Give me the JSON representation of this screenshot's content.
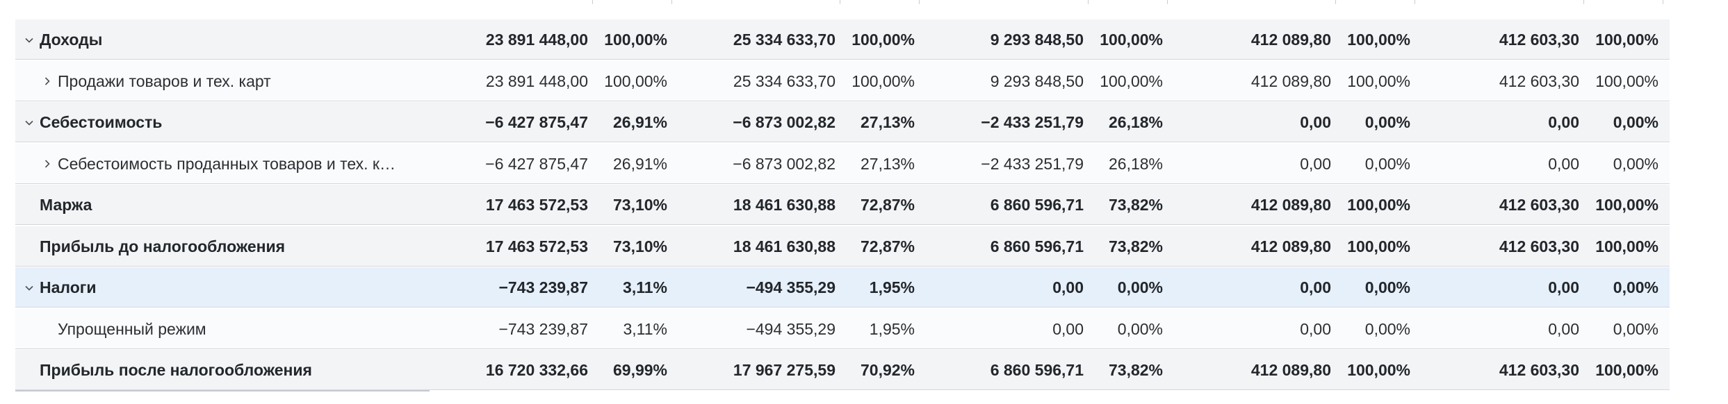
{
  "rows": [
    {
      "label": "Доходы",
      "expand": "down",
      "style": "grey bold",
      "v": [
        "23 891 448,00",
        "100,00%",
        "25 334 633,70",
        "100,00%",
        "9 293 848,50",
        "100,00%",
        "412 089,80",
        "100,00%",
        "412 603,30",
        "100,00%"
      ]
    },
    {
      "label": "Продажи товаров и тех. карт",
      "expand": "right",
      "style": "light",
      "v": [
        "23 891 448,00",
        "100,00%",
        "25 334 633,70",
        "100,00%",
        "9 293 848,50",
        "100,00%",
        "412 089,80",
        "100,00%",
        "412 603,30",
        "100,00%"
      ]
    },
    {
      "label": "Себестоимость",
      "expand": "down",
      "style": "grey bold",
      "v": [
        "−6 427 875,47",
        "26,91%",
        "−6 873 002,82",
        "27,13%",
        "−2 433 251,79",
        "26,18%",
        "0,00",
        "0,00%",
        "0,00",
        "0,00%"
      ]
    },
    {
      "label": "Себестоимость проданных товаров и тех. к…",
      "expand": "right",
      "style": "light",
      "v": [
        "−6 427 875,47",
        "26,91%",
        "−6 873 002,82",
        "27,13%",
        "−2 433 251,79",
        "26,18%",
        "0,00",
        "0,00%",
        "0,00",
        "0,00%"
      ]
    },
    {
      "label": "Маржа",
      "expand": "none",
      "style": "grey bold",
      "v": [
        "17 463 572,53",
        "73,10%",
        "18 461 630,88",
        "72,87%",
        "6 860 596,71",
        "73,82%",
        "412 089,80",
        "100,00%",
        "412 603,30",
        "100,00%"
      ]
    },
    {
      "label": "Прибыль до налогообложения",
      "expand": "none",
      "style": "grey bold",
      "v": [
        "17 463 572,53",
        "73,10%",
        "18 461 630,88",
        "72,87%",
        "6 860 596,71",
        "73,82%",
        "412 089,80",
        "100,00%",
        "412 603,30",
        "100,00%"
      ]
    },
    {
      "label": "Налоги",
      "expand": "down",
      "style": "blue bold",
      "v": [
        "−743 239,87",
        "3,11%",
        "−494 355,29",
        "1,95%",
        "0,00",
        "0,00%",
        "0,00",
        "0,00%",
        "0,00",
        "0,00%"
      ]
    },
    {
      "label": "Упрощенный режим",
      "expand": "none",
      "style": "light",
      "v": [
        "−743 239,87",
        "3,11%",
        "−494 355,29",
        "1,95%",
        "0,00",
        "0,00%",
        "0,00",
        "0,00%",
        "0,00",
        "0,00%"
      ]
    },
    {
      "label": "Прибыль после налогообложения",
      "expand": "none",
      "style": "grey bold",
      "v": [
        "16 720 332,66",
        "69,99%",
        "17 967 275,59",
        "70,92%",
        "6 860 596,71",
        "73,82%",
        "412 089,80",
        "100,00%",
        "412 603,30",
        "100,00%"
      ]
    }
  ]
}
